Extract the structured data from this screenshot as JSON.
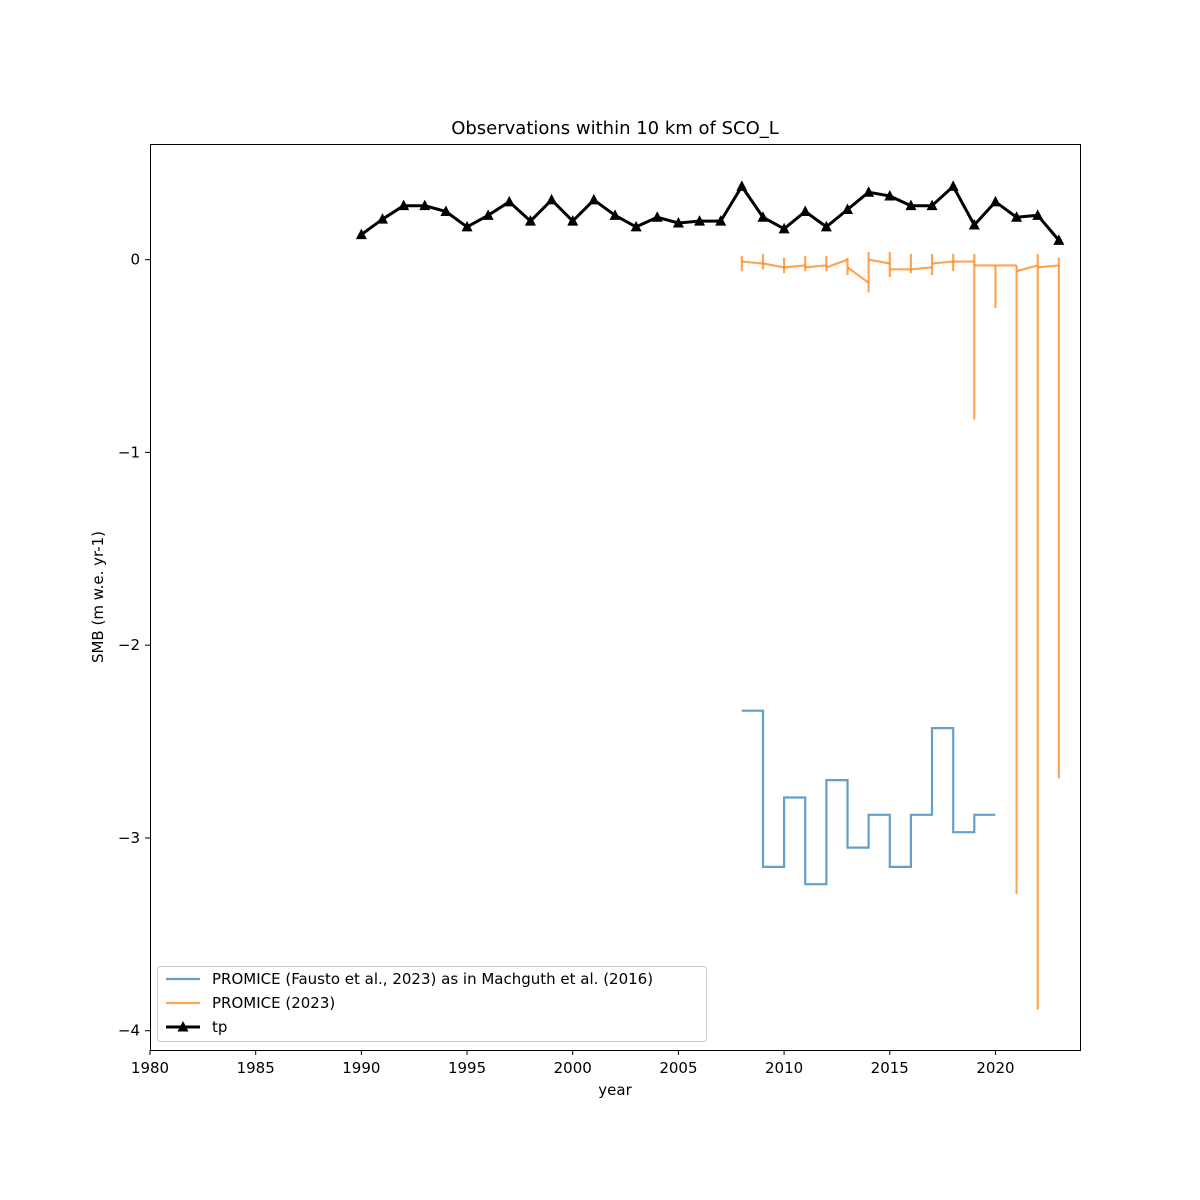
{
  "chart_data": {
    "type": "line",
    "title": "Observations within 10 km of SCO_L",
    "xlabel": "year",
    "ylabel": "SMB (m w.e. yr-1)",
    "xlim": [
      1980,
      2024
    ],
    "ylim": [
      -4.1,
      0.6
    ],
    "xticks": [
      1980,
      1985,
      1990,
      1995,
      2000,
      2005,
      2010,
      2015,
      2020
    ],
    "yticks": [
      0,
      -1,
      -2,
      -3,
      -4
    ],
    "ytick_labels": [
      "0",
      "−1",
      "−2",
      "−3",
      "−4"
    ],
    "grid": false,
    "legend_position": "lower-left",
    "series": [
      {
        "name": "PROMICE (Fausto et al., 2023) as in Machguth et al. (2016)",
        "style": "step",
        "color": "#1f77b4",
        "segments": [
          {
            "x0": 2008,
            "x1": 2009,
            "y": -2.34
          },
          {
            "x0": 2009,
            "x1": 2010,
            "y": -3.15
          },
          {
            "x0": 2010,
            "x1": 2011,
            "y": -2.79
          },
          {
            "x0": 2011,
            "x1": 2012,
            "y": -3.24
          },
          {
            "x0": 2012,
            "x1": 2013,
            "y": -2.7
          },
          {
            "x0": 2013,
            "x1": 2014,
            "y": -3.05
          },
          {
            "x0": 2014,
            "x1": 2015,
            "y": -2.88
          },
          {
            "x0": 2015,
            "x1": 2016,
            "y": -3.15
          },
          {
            "x0": 2016,
            "x1": 2017,
            "y": -2.88
          },
          {
            "x0": 2017,
            "x1": 2018,
            "y": -2.43
          },
          {
            "x0": 2018,
            "x1": 2019,
            "y": -2.97
          },
          {
            "x0": 2019,
            "x1": 2020,
            "y": -2.88
          }
        ]
      },
      {
        "name": "PROMICE (2023)",
        "style": "step-with-ranges",
        "color": "#ff7f0e",
        "segments": [
          {
            "x0": 2008,
            "x1": 2009,
            "y0": -0.01,
            "y1": -0.02
          },
          {
            "x0": 2009,
            "x1": 2010,
            "y0": -0.02,
            "y1": -0.04
          },
          {
            "x0": 2010,
            "x1": 2011,
            "y0": -0.04,
            "y1": -0.03
          },
          {
            "x0": 2011,
            "x1": 2012,
            "y0": -0.04,
            "y1": -0.03
          },
          {
            "x0": 2012,
            "x1": 2013,
            "y0": -0.04,
            "y1": 0.0
          },
          {
            "x0": 2013,
            "x1": 2014,
            "y0": -0.04,
            "y1": -0.12
          },
          {
            "x0": 2014,
            "x1": 2015,
            "y0": 0.0,
            "y1": -0.02
          },
          {
            "x0": 2015,
            "x1": 2016,
            "y0": -0.05,
            "y1": -0.05
          },
          {
            "x0": 2016,
            "x1": 2017,
            "y0": -0.05,
            "y1": -0.04
          },
          {
            "x0": 2017,
            "x1": 2018,
            "y0": -0.02,
            "y1": -0.01
          },
          {
            "x0": 2018,
            "x1": 2019,
            "y0": -0.01,
            "y1": -0.01
          },
          {
            "x0": 2019,
            "x1": 2020,
            "y0": -0.03,
            "y1": -0.03
          },
          {
            "x0": 2020,
            "x1": 2021,
            "y0": -0.03,
            "y1": -0.03
          },
          {
            "x0": 2021,
            "x1": 2022,
            "y0": -0.06,
            "y1": -0.03
          },
          {
            "x0": 2022,
            "x1": 2023,
            "y0": -0.04,
            "y1": -0.03
          }
        ],
        "ranges": [
          {
            "x": 2008,
            "low": -0.06,
            "high": 0.02
          },
          {
            "x": 2009,
            "low": -0.05,
            "high": 0.03
          },
          {
            "x": 2010,
            "low": -0.07,
            "high": 0.01
          },
          {
            "x": 2011,
            "low": -0.06,
            "high": 0.02
          },
          {
            "x": 2012,
            "low": -0.06,
            "high": 0.02
          },
          {
            "x": 2013,
            "low": -0.08,
            "high": 0.01
          },
          {
            "x": 2014,
            "low": -0.17,
            "high": 0.04
          },
          {
            "x": 2015,
            "low": -0.09,
            "high": 0.04
          },
          {
            "x": 2016,
            "low": -0.07,
            "high": 0.03
          },
          {
            "x": 2017,
            "low": -0.08,
            "high": 0.03
          },
          {
            "x": 2018,
            "low": -0.06,
            "high": 0.03
          },
          {
            "x": 2019,
            "low": -0.83,
            "high": 0.03
          },
          {
            "x": 2020,
            "low": -0.25,
            "high": -0.03
          },
          {
            "x": 2021,
            "low": -3.29,
            "high": -0.03
          },
          {
            "x": 2022,
            "low": -3.89,
            "high": 0.03
          },
          {
            "x": 2023,
            "low": -2.69,
            "high": 0.01
          }
        ]
      },
      {
        "name": "tp",
        "style": "line-marker-triangle",
        "color": "#000000",
        "x": [
          1990,
          1991,
          1992,
          1993,
          1994,
          1995,
          1996,
          1997,
          1998,
          1999,
          2000,
          2001,
          2002,
          2003,
          2004,
          2005,
          2006,
          2007,
          2008,
          2009,
          2010,
          2011,
          2012,
          2013,
          2014,
          2015,
          2016,
          2017,
          2018,
          2019,
          2020,
          2021,
          2022,
          2023
        ],
        "values": [
          0.13,
          0.21,
          0.28,
          0.28,
          0.25,
          0.17,
          0.23,
          0.3,
          0.2,
          0.31,
          0.2,
          0.31,
          0.23,
          0.17,
          0.22,
          0.19,
          0.2,
          0.2,
          0.38,
          0.22,
          0.16,
          0.25,
          0.17,
          0.26,
          0.35,
          0.33,
          0.28,
          0.28,
          0.38,
          0.18,
          0.3,
          0.22,
          0.23,
          0.1
        ]
      }
    ]
  }
}
